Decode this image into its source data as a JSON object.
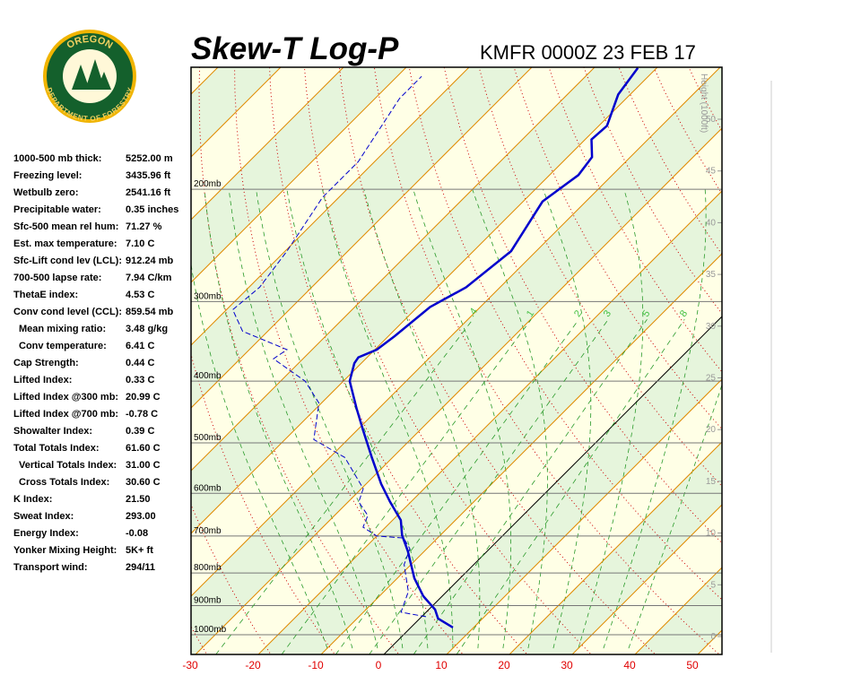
{
  "logo": {
    "top": "OREGON",
    "bottom": "DEPARTMENT OF FORESTRY"
  },
  "stats": [
    {
      "label": "1000-500 mb thick:",
      "value": "5252.00 m"
    },
    {
      "label": "Freezing level:",
      "value": "3435.96 ft"
    },
    {
      "label": "Wetbulb zero:",
      "value": "2541.16 ft"
    },
    {
      "label": "Precipitable water:",
      "value": "0.35 inches"
    },
    {
      "label": "Sfc-500 mean rel hum:",
      "value": "71.27 %"
    },
    {
      "label": "Est. max temperature:",
      "value": "7.10 C"
    },
    {
      "label": "Sfc-Lift cond lev (LCL):",
      "value": "912.24 mb"
    },
    {
      "label": "700-500 lapse rate:",
      "value": "7.94 C/km"
    },
    {
      "label": "ThetaE index:",
      "value": "4.53 C"
    },
    {
      "label": "Conv cond level (CCL):",
      "value": "859.54 mb"
    },
    {
      "label": "Mean mixing ratio:",
      "value": "3.48 g/kg"
    },
    {
      "label": "Conv temperature:",
      "value": "6.41 C"
    },
    {
      "label": "Cap Strength:",
      "value": "0.44 C"
    },
    {
      "label": "Lifted Index:",
      "value": "0.33 C"
    },
    {
      "label": "Lifted Index @300 mb:",
      "value": "20.99 C"
    },
    {
      "label": "Lifted Index @700 mb:",
      "value": "-0.78 C"
    },
    {
      "label": "Showalter Index:",
      "value": "0.39 C"
    },
    {
      "label": "Total Totals Index:",
      "value": "61.60 C"
    },
    {
      "label": "Vertical Totals Index:",
      "value": "31.00 C"
    },
    {
      "label": "Cross Totals Index:",
      "value": "30.60 C"
    },
    {
      "label": "K Index:",
      "value": "21.50"
    },
    {
      "label": "Sweat Index:",
      "value": "293.00"
    },
    {
      "label": "Energy Index:",
      "value": "-0.08"
    },
    {
      "label": "Yonker Mixing Height:",
      "value": "5K+ ft"
    },
    {
      "label": "Transport wind:",
      "value": "294/11"
    }
  ],
  "chart_data": {
    "type": "skew-t",
    "title": "Skew-T Log-P",
    "subtitle": "KMFR 0000Z 23 FEB 17",
    "height_label": "Height (1000ft)",
    "xticks": [
      -30,
      -20,
      -10,
      0,
      10,
      20,
      30,
      40,
      50
    ],
    "yticks": [
      {
        "value": 200,
        "label": "200mb"
      },
      {
        "value": 300,
        "label": "300mb"
      },
      {
        "value": 400,
        "label": "400mb"
      },
      {
        "value": 500,
        "label": "500mb"
      },
      {
        "value": 600,
        "label": "600mb"
      },
      {
        "value": 700,
        "label": "700mb"
      },
      {
        "value": 800,
        "label": "800mb"
      },
      {
        "value": 900,
        "label": "900mb"
      },
      {
        "value": 1000,
        "label": "1000mb"
      }
    ],
    "height_ticks": [
      0,
      5,
      10,
      15,
      20,
      25,
      30,
      35,
      40,
      45,
      50
    ],
    "mixing_ratios": [
      {
        "value": 0.4,
        "label": ".4"
      },
      1,
      2,
      3,
      5,
      8
    ],
    "profiles": [
      {
        "color": "#0000cc",
        "dashed": false,
        "pressure": [
          974,
          943,
          913,
          870,
          815,
          740,
          698,
          661,
          619,
          580,
          527,
          478,
          441,
          400,
          375,
          367,
          357,
          340,
          306,
          285,
          250,
          209,
          190,
          178,
          167,
          159,
          142,
          129
        ],
        "temperature": [
          6.7,
          2.9,
          1.0,
          -3.0,
          -7.3,
          -12.6,
          -16.1,
          -18.7,
          -23.3,
          -27.6,
          -33.3,
          -39.0,
          -43.6,
          -49.0,
          -51.1,
          -51.4,
          -49.7,
          -49.0,
          -48.0,
          -45.4,
          -44.0,
          -46.9,
          -45.4,
          -46.1,
          -49.0,
          -48.7,
          -51.9,
          -53.0
        ]
      },
      {
        "color": "#0000cc",
        "dashed": true,
        "pressure": [
          937,
          922,
          856,
          776,
          733,
          705,
          700,
          678,
          650,
          619,
          590,
          527,
          494,
          433,
          400,
          369,
          357,
          334,
          309,
          285,
          250,
          206,
          181,
          144,
          133
        ],
        "temperature": [
          0.7,
          -4.0,
          -6.1,
          -11.1,
          -12.7,
          -15.4,
          -20.0,
          -23.6,
          -24.7,
          -28.3,
          -29.7,
          -37.6,
          -45.4,
          -50.4,
          -56.1,
          -64.7,
          -64.0,
          -74.0,
          -79.0,
          -78.3,
          -79.7,
          -82.6,
          -82.6,
          -86.1,
          -86.1
        ]
      }
    ]
  }
}
